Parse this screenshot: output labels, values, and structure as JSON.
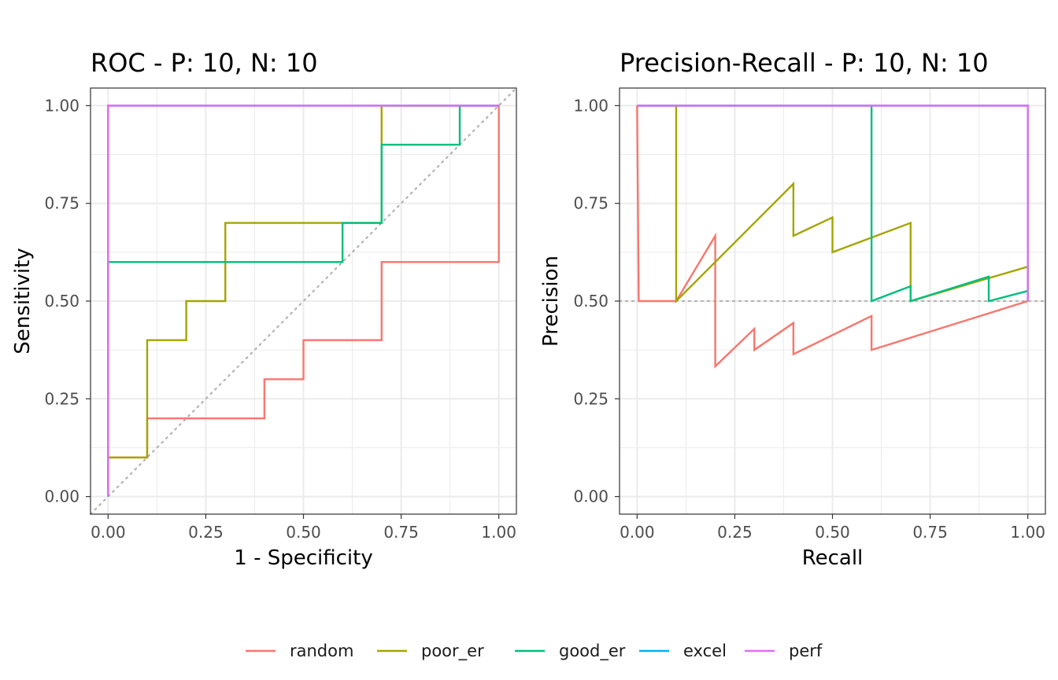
{
  "chart_data": [
    {
      "type": "line",
      "title": "ROC - P: 10, N: 10",
      "xlabel": "1 - Specificity",
      "ylabel": "Sensitivity",
      "xlim": [
        -0.045,
        1.045
      ],
      "ylim": [
        -0.045,
        1.045
      ],
      "xticks": [
        "0.00",
        "0.25",
        "0.50",
        "0.75",
        "1.00"
      ],
      "yticks": [
        "0.00",
        "0.25",
        "0.50",
        "0.75",
        "1.00"
      ],
      "grid": true,
      "reference_line": {
        "style": "dotted",
        "color": "#b3b3b3",
        "points": [
          [
            -0.045,
            -0.045
          ],
          [
            1.045,
            1.045
          ]
        ]
      },
      "series": [
        {
          "name": "random",
          "color": "#F8766D",
          "points": [
            [
              0,
              0
            ],
            [
              0,
              0.1
            ],
            [
              0.1,
              0.1
            ],
            [
              0.1,
              0.2
            ],
            [
              0.4,
              0.2
            ],
            [
              0.4,
              0.3
            ],
            [
              0.5,
              0.3
            ],
            [
              0.5,
              0.4
            ],
            [
              0.7,
              0.4
            ],
            [
              0.7,
              0.6
            ],
            [
              1.0,
              0.6
            ],
            [
              1.0,
              1.0
            ]
          ]
        },
        {
          "name": "poor_er",
          "color": "#A3A500",
          "points": [
            [
              0,
              0
            ],
            [
              0,
              0.1
            ],
            [
              0.1,
              0.1
            ],
            [
              0.1,
              0.4
            ],
            [
              0.2,
              0.4
            ],
            [
              0.2,
              0.5
            ],
            [
              0.3,
              0.5
            ],
            [
              0.3,
              0.7
            ],
            [
              0.7,
              0.7
            ],
            [
              0.7,
              1.0
            ],
            [
              1.0,
              1.0
            ]
          ]
        },
        {
          "name": "good_er",
          "color": "#00BF7D",
          "points": [
            [
              0,
              0
            ],
            [
              0,
              0.6
            ],
            [
              0.6,
              0.6
            ],
            [
              0.6,
              0.7
            ],
            [
              0.7,
              0.7
            ],
            [
              0.7,
              0.9
            ],
            [
              0.9,
              0.9
            ],
            [
              0.9,
              1.0
            ],
            [
              1.0,
              1.0
            ]
          ]
        },
        {
          "name": "excel",
          "color": "#00B0F6",
          "points": [
            [
              0,
              0
            ],
            [
              0,
              1.0
            ],
            [
              1.0,
              1.0
            ]
          ]
        },
        {
          "name": "perf",
          "color": "#E76BF3",
          "points": [
            [
              0,
              0
            ],
            [
              0,
              1.0
            ],
            [
              1.0,
              1.0
            ]
          ]
        }
      ]
    },
    {
      "type": "line",
      "title": "Precision-Recall - P: 10, N: 10",
      "xlabel": "Recall",
      "ylabel": "Precision",
      "xlim": [
        -0.045,
        1.045
      ],
      "ylim": [
        -0.045,
        1.045
      ],
      "xticks": [
        "0.00",
        "0.25",
        "0.50",
        "0.75",
        "1.00"
      ],
      "yticks": [
        "0.00",
        "0.25",
        "0.50",
        "0.75",
        "1.00"
      ],
      "grid": true,
      "reference_line": {
        "style": "dotted",
        "color": "#b3b3b3",
        "points": [
          [
            -0.045,
            0.5
          ],
          [
            1.045,
            0.5
          ]
        ]
      },
      "series": [
        {
          "name": "random",
          "color": "#F8766D",
          "steps": [
            {
              "tp": 0,
              "fp": 0,
              "x": 0.0,
              "y": 1.0
            },
            {
              "tp": 1,
              "fp": 1,
              "x": 0.1,
              "y": 0.5
            },
            {
              "tp": 2,
              "fp": 1,
              "x": 0.2,
              "y": 0.667
            },
            {
              "tp": 2,
              "fp": 4,
              "x": 0.2,
              "y": 0.333
            },
            {
              "tp": 3,
              "fp": 4,
              "x": 0.3,
              "y": 0.429
            },
            {
              "tp": 3,
              "fp": 5,
              "x": 0.3,
              "y": 0.375
            },
            {
              "tp": 4,
              "fp": 5,
              "x": 0.4,
              "y": 0.444
            },
            {
              "tp": 4,
              "fp": 7,
              "x": 0.4,
              "y": 0.364
            },
            {
              "tp": 6,
              "fp": 7,
              "x": 0.6,
              "y": 0.462
            },
            {
              "tp": 6,
              "fp": 10,
              "x": 0.6,
              "y": 0.375
            },
            {
              "tp": 10,
              "fp": 10,
              "x": 1.0,
              "y": 0.5
            }
          ]
        },
        {
          "name": "poor_er",
          "color": "#A3A500",
          "steps": [
            {
              "tp": 0,
              "fp": 0,
              "x": 0.0,
              "y": 1.0
            },
            {
              "tp": 1,
              "fp": 0,
              "x": 0.1,
              "y": 1.0
            },
            {
              "tp": 1,
              "fp": 1,
              "x": 0.1,
              "y": 0.5
            },
            {
              "tp": 4,
              "fp": 1,
              "x": 0.4,
              "y": 0.8
            },
            {
              "tp": 4,
              "fp": 2,
              "x": 0.4,
              "y": 0.667
            },
            {
              "tp": 5,
              "fp": 2,
              "x": 0.5,
              "y": 0.714
            },
            {
              "tp": 5,
              "fp": 3,
              "x": 0.5,
              "y": 0.625
            },
            {
              "tp": 7,
              "fp": 3,
              "x": 0.7,
              "y": 0.7
            },
            {
              "tp": 7,
              "fp": 7,
              "x": 0.7,
              "y": 0.5
            },
            {
              "tp": 10,
              "fp": 7,
              "x": 1.0,
              "y": 0.588
            },
            {
              "tp": 10,
              "fp": 10,
              "x": 1.0,
              "y": 0.5
            }
          ]
        },
        {
          "name": "good_er",
          "color": "#00BF7D",
          "steps": [
            {
              "tp": 0,
              "fp": 0,
              "x": 0.0,
              "y": 1.0
            },
            {
              "tp": 6,
              "fp": 0,
              "x": 0.6,
              "y": 1.0
            },
            {
              "tp": 6,
              "fp": 6,
              "x": 0.6,
              "y": 0.5
            },
            {
              "tp": 7,
              "fp": 6,
              "x": 0.7,
              "y": 0.538
            },
            {
              "tp": 7,
              "fp": 7,
              "x": 0.7,
              "y": 0.5
            },
            {
              "tp": 9,
              "fp": 7,
              "x": 0.9,
              "y": 0.5625
            },
            {
              "tp": 9,
              "fp": 9,
              "x": 0.9,
              "y": 0.5
            },
            {
              "tp": 10,
              "fp": 9,
              "x": 1.0,
              "y": 0.526
            },
            {
              "tp": 10,
              "fp": 10,
              "x": 1.0,
              "y": 0.5
            }
          ]
        },
        {
          "name": "excel",
          "color": "#00B0F6",
          "steps": [
            {
              "tp": 0,
              "fp": 0,
              "x": 0.0,
              "y": 1.0
            },
            {
              "tp": 10,
              "fp": 0,
              "x": 1.0,
              "y": 1.0
            },
            {
              "tp": 10,
              "fp": 10,
              "x": 1.0,
              "y": 0.5
            }
          ]
        },
        {
          "name": "perf",
          "color": "#E76BF3",
          "steps": [
            {
              "tp": 0,
              "fp": 0,
              "x": 0.0,
              "y": 1.0
            },
            {
              "tp": 10,
              "fp": 0,
              "x": 1.0,
              "y": 1.0
            },
            {
              "tp": 10,
              "fp": 10,
              "x": 1.0,
              "y": 0.5
            }
          ]
        }
      ]
    }
  ],
  "legend": {
    "position": "bottom",
    "items": [
      {
        "label": "random",
        "color": "#F8766D"
      },
      {
        "label": "poor_er",
        "color": "#A3A500"
      },
      {
        "label": "good_er",
        "color": "#00BF7D"
      },
      {
        "label": "excel",
        "color": "#00B0F6"
      },
      {
        "label": "perf",
        "color": "#E76BF3"
      }
    ]
  }
}
